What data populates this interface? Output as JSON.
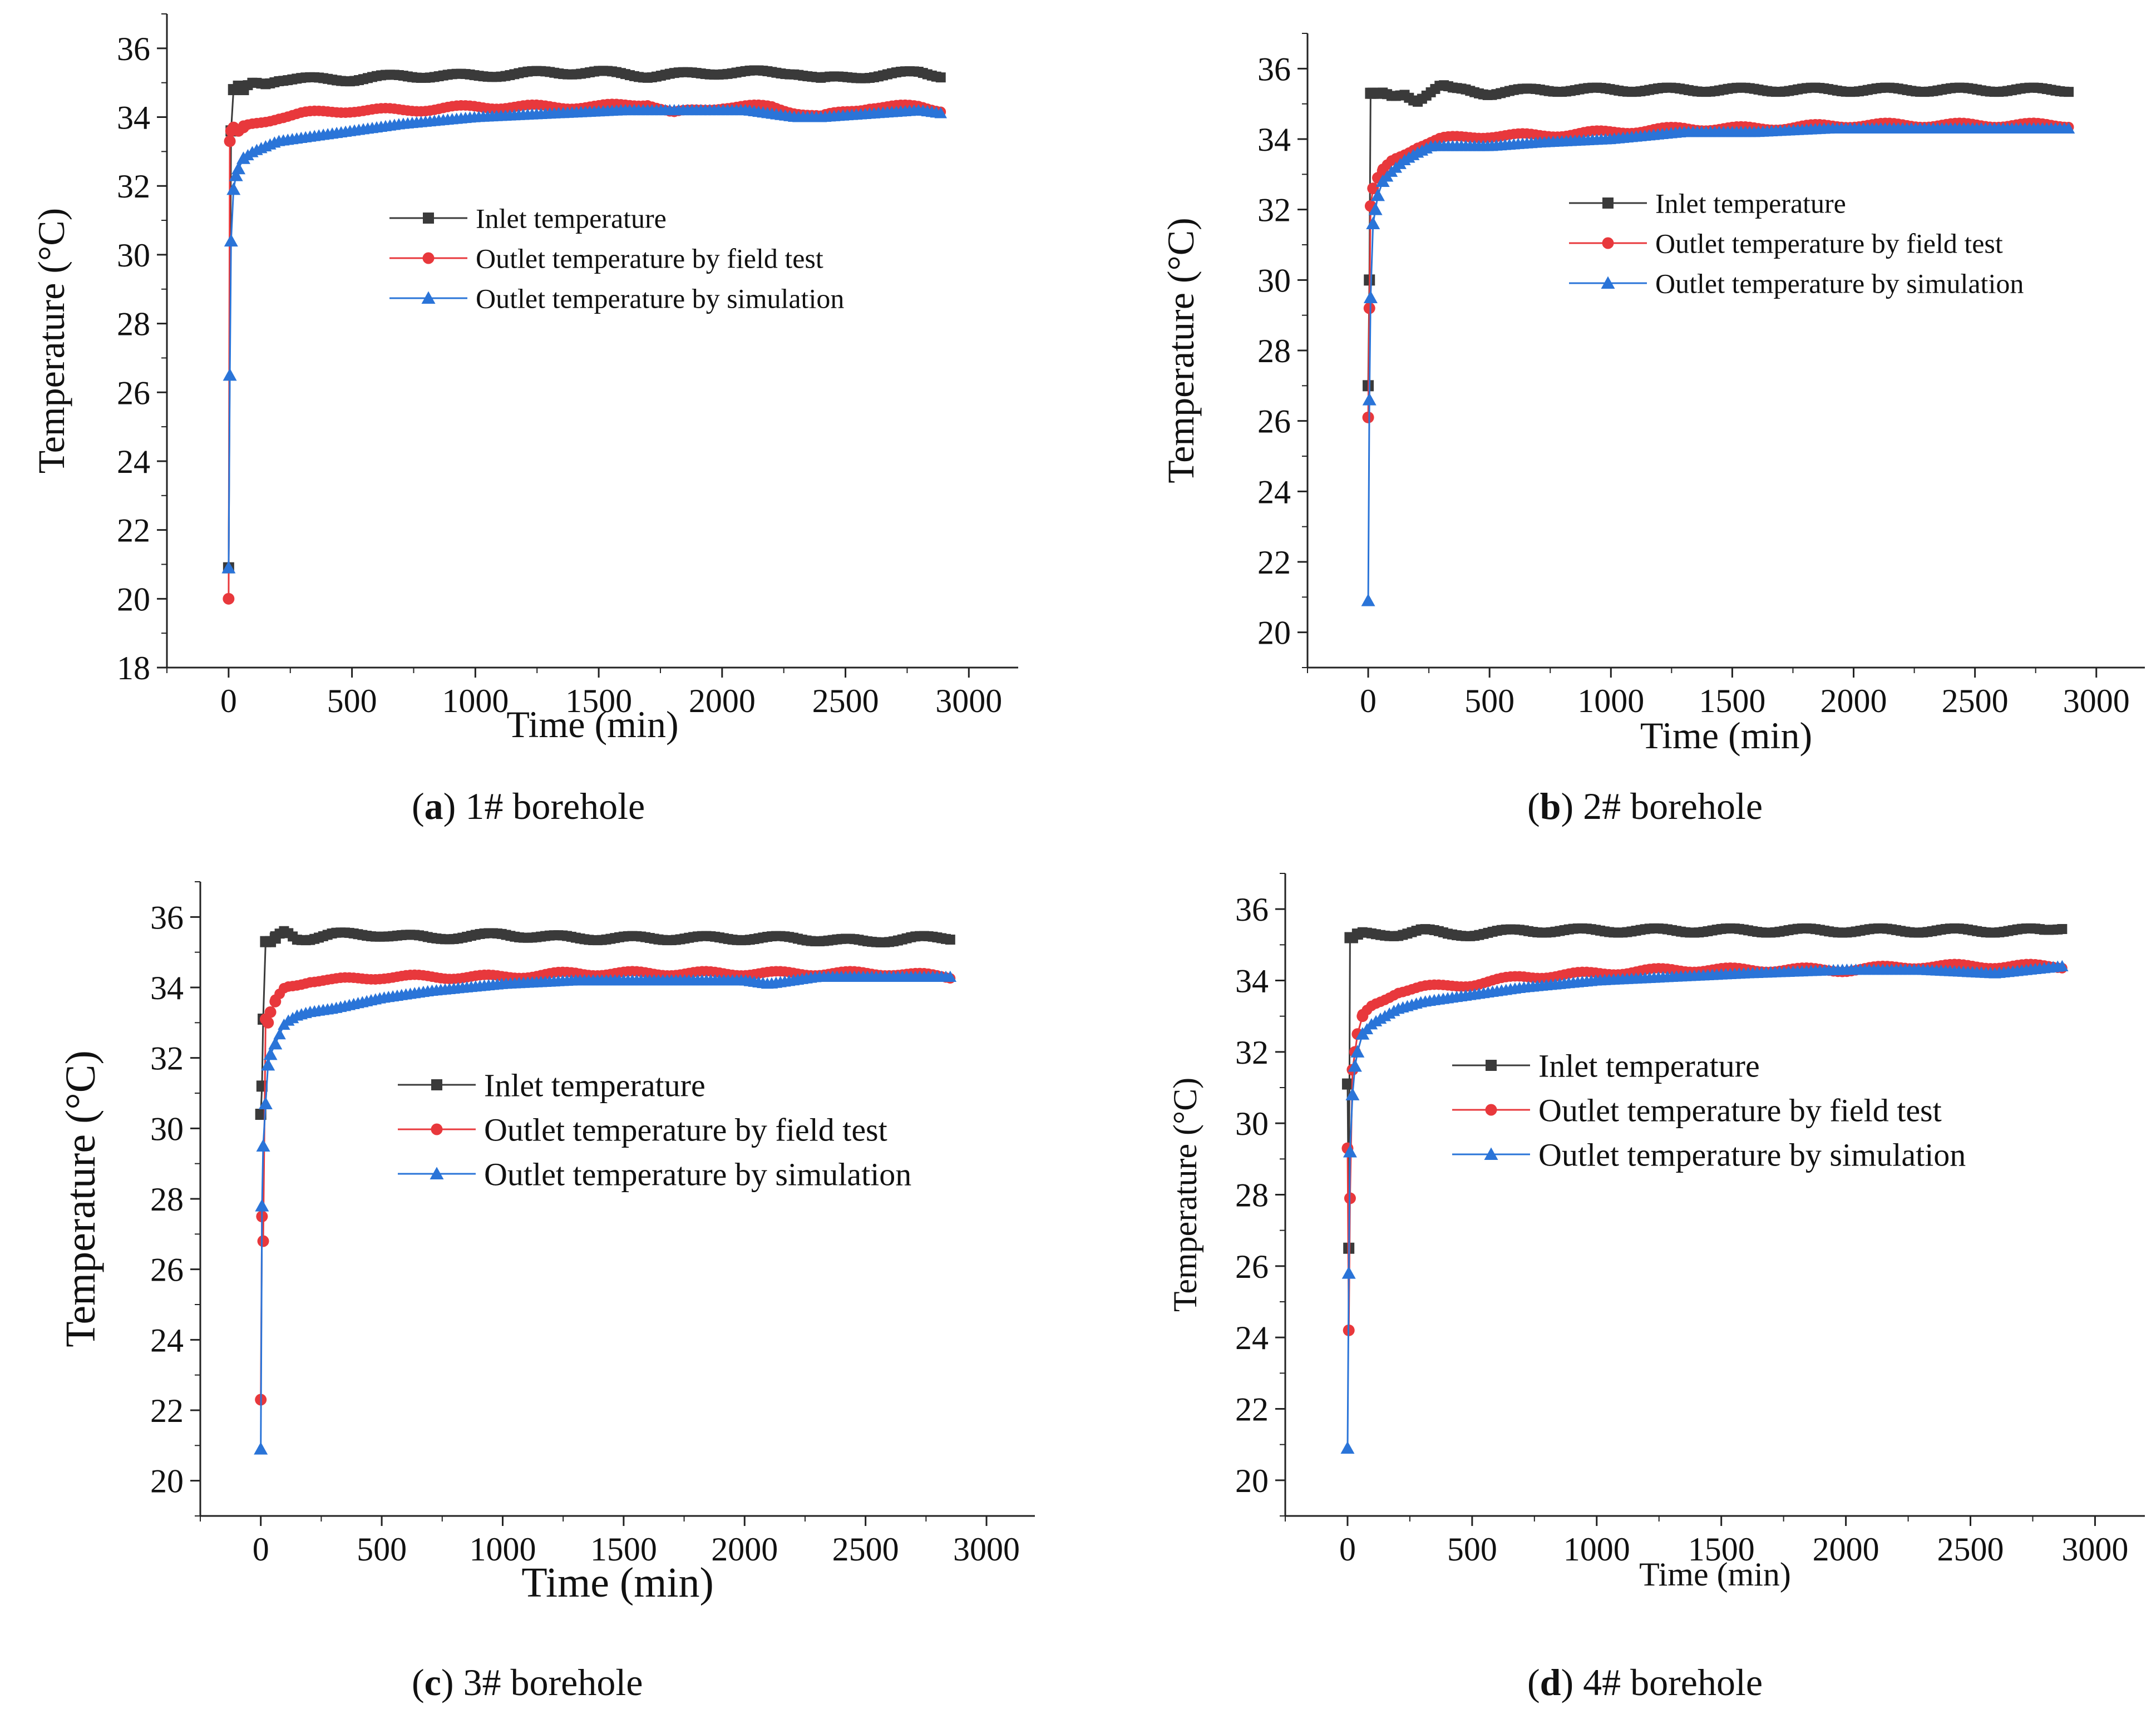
{
  "colors": {
    "inlet": "#3a3a3a",
    "field": "#e8383c",
    "sim": "#2a74d8",
    "axis": "#222222",
    "text": "#111111"
  },
  "chart_data": [
    {
      "id": "a",
      "type": "line",
      "title": "",
      "caption_tag": "a",
      "caption_text": "1# borehole",
      "xlabel": "Time (min)",
      "ylabel": "Temperature (°C)",
      "xlim": [
        -250,
        3200
      ],
      "ylim": [
        18,
        37
      ],
      "xticks": [
        0,
        500,
        1000,
        1500,
        2000,
        2500,
        3000
      ],
      "yticks": [
        18,
        20,
        22,
        24,
        26,
        28,
        30,
        32,
        34,
        36
      ],
      "legend": [
        "Inlet temperature",
        "Outlet temperature by field test",
        "Outlet temperature by simulation"
      ],
      "legend_position": "center-right",
      "series": [
        {
          "name": "Inlet temperature",
          "key": "inlet",
          "x": [
            0,
            10,
            20,
            40,
            60,
            100,
            150,
            200,
            300,
            500,
            700,
            1000,
            1300,
            1500,
            1700,
            2000,
            2300,
            2400,
            2600,
            2800,
            2900
          ],
          "y": [
            20.9,
            33.6,
            34.8,
            34.9,
            34.8,
            35.0,
            35.0,
            35.1,
            35.1,
            35.1,
            35.2,
            35.2,
            35.3,
            35.3,
            35.2,
            35.3,
            35.3,
            35.1,
            35.2,
            35.3,
            35.2
          ]
        },
        {
          "name": "Outlet temperature by field test",
          "key": "field",
          "x": [
            0,
            5,
            10,
            20,
            40,
            60,
            100,
            150,
            200,
            300,
            500,
            700,
            1000,
            1300,
            1500,
            1700,
            1800,
            2000,
            2200,
            2400,
            2600,
            2800,
            2900
          ],
          "y": [
            20.0,
            33.3,
            33.6,
            33.7,
            33.6,
            33.7,
            33.8,
            33.9,
            34.0,
            34.1,
            34.2,
            34.2,
            34.3,
            34.3,
            34.3,
            34.4,
            34.1,
            34.3,
            34.3,
            34.0,
            34.3,
            34.3,
            34.2
          ]
        },
        {
          "name": "Outlet temperature by simulation",
          "key": "sim",
          "x": [
            0,
            5,
            10,
            20,
            30,
            40,
            60,
            100,
            200,
            300,
            500,
            700,
            1000,
            1300,
            1600,
            1900,
            2100,
            2300,
            2400,
            2600,
            2800,
            2900
          ],
          "y": [
            20.9,
            26.5,
            30.4,
            31.9,
            32.3,
            32.5,
            32.8,
            33.0,
            33.3,
            33.4,
            33.6,
            33.8,
            34.0,
            34.1,
            34.2,
            34.2,
            34.2,
            34.0,
            34.0,
            34.1,
            34.2,
            34.1
          ]
        }
      ]
    },
    {
      "id": "b",
      "type": "line",
      "title": "",
      "caption_tag": "b",
      "caption_text": "2# borehole",
      "xlabel": "Time (min)",
      "ylabel": "Temperature (°C)",
      "xlim": [
        -250,
        3200
      ],
      "ylim": [
        19,
        37
      ],
      "xticks": [
        0,
        500,
        1000,
        1500,
        2000,
        2500,
        3000
      ],
      "yticks": [
        20,
        22,
        24,
        26,
        28,
        30,
        32,
        34,
        36
      ],
      "legend": [
        "Inlet temperature",
        "Outlet temperature by field test",
        "Outlet temperature by simulation"
      ],
      "legend_position": "center-right",
      "series": [
        {
          "name": "Inlet temperature",
          "key": "inlet",
          "x": [
            0,
            5,
            10,
            20,
            40,
            100,
            150,
            200,
            300,
            350,
            400,
            500,
            700,
            1000,
            1300,
            1500,
            1800,
            2000,
            2300,
            2600,
            2900
          ],
          "y": [
            27.0,
            30.0,
            35.3,
            35.3,
            35.3,
            35.2,
            35.3,
            35.1,
            35.5,
            35.4,
            35.4,
            35.3,
            35.4,
            35.4,
            35.4,
            35.4,
            35.4,
            35.4,
            35.4,
            35.4,
            35.4
          ]
        },
        {
          "name": "Outlet temperature by field test",
          "key": "field",
          "x": [
            0,
            5,
            10,
            20,
            40,
            60,
            100,
            150,
            200,
            300,
            500,
            700,
            1000,
            1300,
            1600,
            2000,
            2300,
            2600,
            2900
          ],
          "y": [
            26.1,
            29.2,
            32.1,
            32.6,
            32.9,
            33.1,
            33.4,
            33.6,
            33.8,
            34.0,
            34.1,
            34.1,
            34.2,
            34.3,
            34.3,
            34.4,
            34.4,
            34.4,
            34.4
          ]
        },
        {
          "name": "Outlet temperature by simulation",
          "key": "sim",
          "x": [
            0,
            5,
            10,
            20,
            30,
            40,
            60,
            100,
            150,
            200,
            260,
            300,
            500,
            700,
            1000,
            1300,
            1600,
            1900,
            2200,
            2600,
            2900
          ],
          "y": [
            20.9,
            26.6,
            29.5,
            31.6,
            32.0,
            32.4,
            32.8,
            33.1,
            33.4,
            33.6,
            33.8,
            33.8,
            33.8,
            33.9,
            34.0,
            34.2,
            34.2,
            34.3,
            34.3,
            34.3,
            34.3
          ]
        }
      ]
    },
    {
      "id": "c",
      "type": "line",
      "title": "",
      "caption_tag": "c",
      "caption_text": "3# borehole",
      "xlabel": "Time (min)",
      "ylabel": "Temperature (°C)",
      "xlim": [
        -250,
        3200
      ],
      "ylim": [
        19,
        37
      ],
      "xticks": [
        0,
        500,
        1000,
        1500,
        2000,
        2500,
        3000
      ],
      "yticks": [
        20,
        22,
        24,
        26,
        28,
        30,
        32,
        34,
        36
      ],
      "legend": [
        "Inlet temperature",
        "Outlet temperature by field test",
        "Outlet temperature by simulation"
      ],
      "legend_position": "center-right",
      "series": [
        {
          "name": "Inlet temperature",
          "key": "inlet",
          "x": [
            0,
            5,
            10,
            20,
            40,
            60,
            100,
            150,
            200,
            300,
            500,
            700,
            1000,
            1300,
            1600,
            1900,
            2200,
            2500,
            2700,
            2850
          ],
          "y": [
            30.4,
            31.2,
            33.1,
            35.3,
            35.3,
            35.4,
            35.6,
            35.4,
            35.4,
            35.5,
            35.5,
            35.4,
            35.5,
            35.4,
            35.4,
            35.4,
            35.4,
            35.3,
            35.4,
            35.4
          ]
        },
        {
          "name": "Outlet temperature by field test",
          "key": "field",
          "x": [
            0,
            5,
            10,
            20,
            30,
            40,
            60,
            100,
            150,
            200,
            300,
            500,
            700,
            1000,
            1300,
            1600,
            2000,
            2300,
            2600,
            2850
          ],
          "y": [
            22.3,
            27.5,
            26.8,
            33.1,
            33.0,
            33.3,
            33.6,
            34.0,
            34.1,
            34.2,
            34.2,
            34.3,
            34.3,
            34.3,
            34.4,
            34.4,
            34.4,
            34.4,
            34.4,
            34.3
          ]
        },
        {
          "name": "Outlet temperature by simulation",
          "key": "sim",
          "x": [
            0,
            5,
            10,
            20,
            30,
            40,
            60,
            80,
            100,
            150,
            200,
            300,
            500,
            700,
            1000,
            1300,
            1600,
            1800,
            2000,
            2100,
            2300,
            2500,
            2850
          ],
          "y": [
            20.9,
            27.8,
            29.5,
            30.7,
            31.8,
            32.1,
            32.4,
            32.7,
            33.0,
            33.2,
            33.3,
            33.4,
            33.7,
            33.9,
            34.1,
            34.2,
            34.2,
            34.2,
            34.2,
            34.1,
            34.3,
            34.3,
            34.3
          ]
        }
      ]
    },
    {
      "id": "d",
      "type": "line",
      "title": "",
      "caption_tag": "d",
      "caption_text": "4# borehole",
      "xlabel": "Time (min)",
      "ylabel": "Temperature (°C)",
      "xlim": [
        -250,
        3200
      ],
      "ylim": [
        19,
        37
      ],
      "xticks": [
        0,
        500,
        1000,
        1500,
        2000,
        2500,
        3000
      ],
      "yticks": [
        20,
        22,
        24,
        26,
        28,
        30,
        32,
        34,
        36
      ],
      "legend": [
        "Inlet temperature",
        "Outlet temperature by field test",
        "Outlet temperature by simulation"
      ],
      "legend_position": "center-right",
      "series": [
        {
          "name": "Inlet temperature",
          "key": "inlet",
          "x": [
            0,
            5,
            10,
            20,
            40,
            100,
            200,
            300,
            400,
            500,
            700,
            1000,
            1300,
            1600,
            1900,
            2200,
            2500,
            2800,
            2870
          ],
          "y": [
            31.1,
            26.5,
            35.2,
            35.2,
            35.3,
            35.3,
            35.3,
            35.4,
            35.3,
            35.3,
            35.4,
            35.4,
            35.4,
            35.4,
            35.4,
            35.4,
            35.4,
            35.4,
            35.5
          ]
        },
        {
          "name": "Outlet temperature by field test",
          "key": "field",
          "x": [
            0,
            5,
            10,
            20,
            30,
            40,
            60,
            100,
            150,
            200,
            300,
            500,
            700,
            1000,
            1300,
            1600,
            2000,
            2300,
            2600,
            2870
          ],
          "y": [
            29.3,
            24.2,
            27.9,
            31.5,
            32.0,
            32.5,
            33.0,
            33.3,
            33.5,
            33.7,
            33.8,
            33.9,
            34.1,
            34.2,
            34.3,
            34.3,
            34.3,
            34.4,
            34.4,
            34.4
          ]
        },
        {
          "name": "Outlet temperature by simulation",
          "key": "sim",
          "x": [
            0,
            5,
            10,
            20,
            30,
            40,
            60,
            100,
            150,
            200,
            300,
            500,
            700,
            1000,
            1300,
            1600,
            2000,
            2300,
            2600,
            2870
          ],
          "y": [
            20.9,
            25.8,
            29.2,
            30.8,
            31.6,
            32.0,
            32.5,
            32.8,
            33.0,
            33.2,
            33.4,
            33.6,
            33.8,
            34.0,
            34.1,
            34.2,
            34.3,
            34.3,
            34.2,
            34.4
          ]
        }
      ]
    }
  ]
}
